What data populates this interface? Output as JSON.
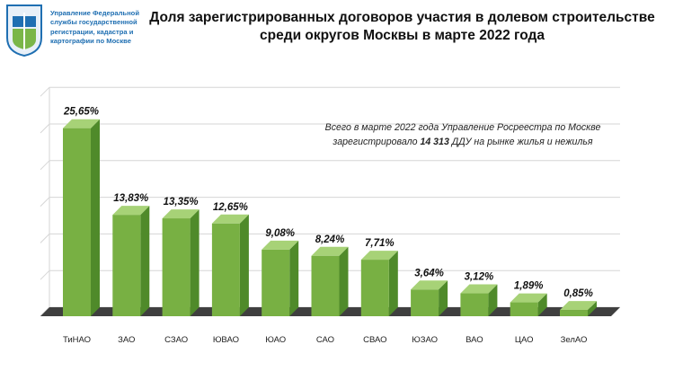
{
  "header": {
    "org_lines": [
      "Управление Федеральной",
      "службы государственной",
      "регистрации, кадастра и",
      "картографии по Москве"
    ],
    "title_line1": "Доля зарегистрированных  договоров участия в долевом строительстве",
    "title_line2": "среди округов Москвы в марте 2022 года"
  },
  "note": {
    "line1": "Всего в марте 2022 года Управление Росреестра по Москве",
    "line2_before": "зарегистрировало ",
    "line2_bold": "14 313",
    "line2_after": " ДДУ на рынке жилья и нежилья"
  },
  "colors": {
    "bar_front": "#78b043",
    "bar_side": "#4f8a2a",
    "bar_top": "#a7d277",
    "floor": "#3f3f3f",
    "gridline": "#d6d6d6",
    "logo_blue": "#1f6fb2",
    "logo_green": "#7ab648"
  },
  "chart_data": {
    "type": "bar",
    "categories": [
      "ТиНАО",
      "ЗАО",
      "СЗАО",
      "ЮВАО",
      "ЮАО",
      "САО",
      "СВАО",
      "ЮЗАО",
      "ВАО",
      "ЦАО",
      "ЗелАО"
    ],
    "values": [
      25.65,
      13.83,
      13.35,
      12.65,
      9.08,
      8.24,
      7.71,
      3.64,
      3.12,
      1.89,
      0.85
    ],
    "labels": [
      "25,65%",
      "13,83%",
      "13,35%",
      "12,65%",
      "9,08%",
      "8,24%",
      "7,71%",
      "3,64%",
      "3,12%",
      "1,89%",
      "0,85%"
    ],
    "ylim": [
      0,
      30
    ],
    "grid": true,
    "legend": "none"
  }
}
